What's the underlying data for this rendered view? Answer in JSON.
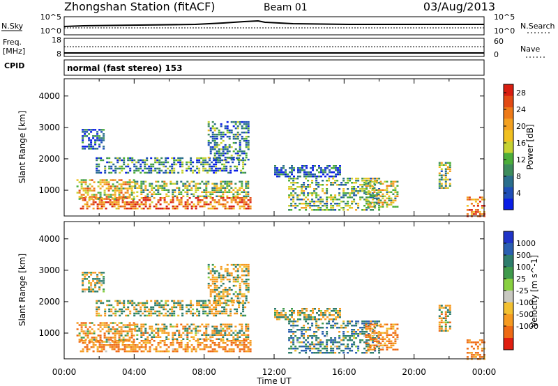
{
  "header": {
    "station": "Zhongshan Station (fitACF)",
    "beam": "Beam 01",
    "date": "03/Aug/2013",
    "cpid_label": "CPID",
    "cpid_text": "normal (fast stereo) 153"
  },
  "top_panels": {
    "nsky_label": "N.Sky",
    "nsky_ticks": [
      "10^5",
      "10^0"
    ],
    "nsearch_label": "N.Search",
    "nsearch_ticks": [
      "10^5",
      "10^0"
    ],
    "freq_label_1": "Freq.",
    "freq_label_2": "[MHz]",
    "freq_ticks": [
      "18",
      "8"
    ],
    "nave_label": "Nave",
    "nave_ticks": [
      "60",
      "0"
    ]
  },
  "chart_data": [
    {
      "type": "heatmap",
      "title": "",
      "xlabel": "Time UT",
      "ylabel": "Slant Range [km]",
      "x_ticks": [
        "00:00",
        "04:00",
        "08:00",
        "12:00",
        "16:00",
        "20:00",
        "00:00"
      ],
      "y_ticks": [
        "1000",
        "2000",
        "3000",
        "4000"
      ],
      "xlim_hours": [
        0,
        24
      ],
      "ylim_km": [
        180,
        4550
      ],
      "colorbar": {
        "label": "Power [dB]",
        "ticks": [
          "4",
          "8",
          "12",
          "16",
          "20",
          "24",
          "28"
        ],
        "range": [
          0,
          30
        ],
        "colors": [
          "#0a1ee6",
          "#1f4fb8",
          "#2a6e8c",
          "#3d8c5c",
          "#4cae3a",
          "#c6d232",
          "#f0c020",
          "#f3a020",
          "#ee7a18",
          "#e24a14",
          "#d81e10"
        ]
      },
      "echo_regions": [
        {
          "t0": 0.9,
          "t1": 10.6,
          "r0": 430,
          "r1": 780,
          "value": 24
        },
        {
          "t0": 0.7,
          "t1": 4.0,
          "r0": 700,
          "r1": 1350,
          "value": 18
        },
        {
          "t0": 4.0,
          "t1": 10.5,
          "r0": 780,
          "r1": 1300,
          "value": 14
        },
        {
          "t0": 1.8,
          "t1": 10.3,
          "r0": 1550,
          "r1": 2050,
          "value": 8
        },
        {
          "t0": 1.0,
          "t1": 2.2,
          "r0": 2300,
          "r1": 2950,
          "value": 5
        },
        {
          "t0": 8.2,
          "t1": 10.5,
          "r0": 2000,
          "r1": 3200,
          "value": 9
        },
        {
          "t0": 12.0,
          "t1": 15.8,
          "r0": 1450,
          "r1": 1800,
          "value": 5
        },
        {
          "t0": 12.8,
          "t1": 18.0,
          "r0": 400,
          "r1": 1400,
          "value": 12
        },
        {
          "t0": 17.2,
          "t1": 19.0,
          "r0": 500,
          "r1": 1300,
          "value": 15
        },
        {
          "t0": 21.4,
          "t1": 22.1,
          "r0": 1100,
          "r1": 1900,
          "value": 13
        },
        {
          "t0": 23.0,
          "t1": 24.0,
          "r0": 200,
          "r1": 800,
          "value": 25
        }
      ]
    },
    {
      "type": "heatmap",
      "title": "",
      "xlabel": "Time UT",
      "ylabel": "Slant Range [km]",
      "x_ticks": [
        "00:00",
        "04:00",
        "08:00",
        "12:00",
        "16:00",
        "20:00",
        "00:00"
      ],
      "y_ticks": [
        "1000",
        "2000",
        "3000",
        "4000"
      ],
      "xlim_hours": [
        0,
        24
      ],
      "ylim_km": [
        180,
        4550
      ],
      "colorbar": {
        "label": "Velocity [m s^-1]",
        "ticks": [
          "1000",
          "500",
          "100",
          "25",
          "-25",
          "-100",
          "-500",
          "-1000"
        ],
        "colors": [
          "#2034c8",
          "#2a5fb0",
          "#2e7d6c",
          "#3f9a4c",
          "#88d040",
          "#c8c8c0",
          "#f2c030",
          "#f59a20",
          "#ee6a14",
          "#e01e10"
        ]
      },
      "echo_regions": [
        {
          "t0": 0.9,
          "t1": 10.6,
          "r0": 430,
          "r1": 780,
          "value": -300
        },
        {
          "t0": 0.7,
          "t1": 4.0,
          "r0": 700,
          "r1": 1350,
          "value": -200
        },
        {
          "t0": 4.0,
          "t1": 10.5,
          "r0": 780,
          "r1": 1300,
          "value": -50
        },
        {
          "t0": 1.8,
          "t1": 10.3,
          "r0": 1550,
          "r1": 2050,
          "value": 0
        },
        {
          "t0": 1.0,
          "t1": 2.2,
          "r0": 2300,
          "r1": 2950,
          "value": 0
        },
        {
          "t0": 8.2,
          "t1": 10.5,
          "r0": 2000,
          "r1": 3200,
          "value": 0
        },
        {
          "t0": 12.0,
          "t1": 15.8,
          "r0": 1450,
          "r1": 1800,
          "value": 0
        },
        {
          "t0": 12.8,
          "t1": 18.0,
          "r0": 400,
          "r1": 1400,
          "value": 200
        },
        {
          "t0": 17.2,
          "t1": 19.0,
          "r0": 500,
          "r1": 1300,
          "value": -300
        },
        {
          "t0": 21.4,
          "t1": 22.1,
          "r0": 1100,
          "r1": 1900,
          "value": -100
        },
        {
          "t0": 23.0,
          "t1": 24.0,
          "r0": 200,
          "r1": 800,
          "value": -300
        }
      ]
    }
  ]
}
